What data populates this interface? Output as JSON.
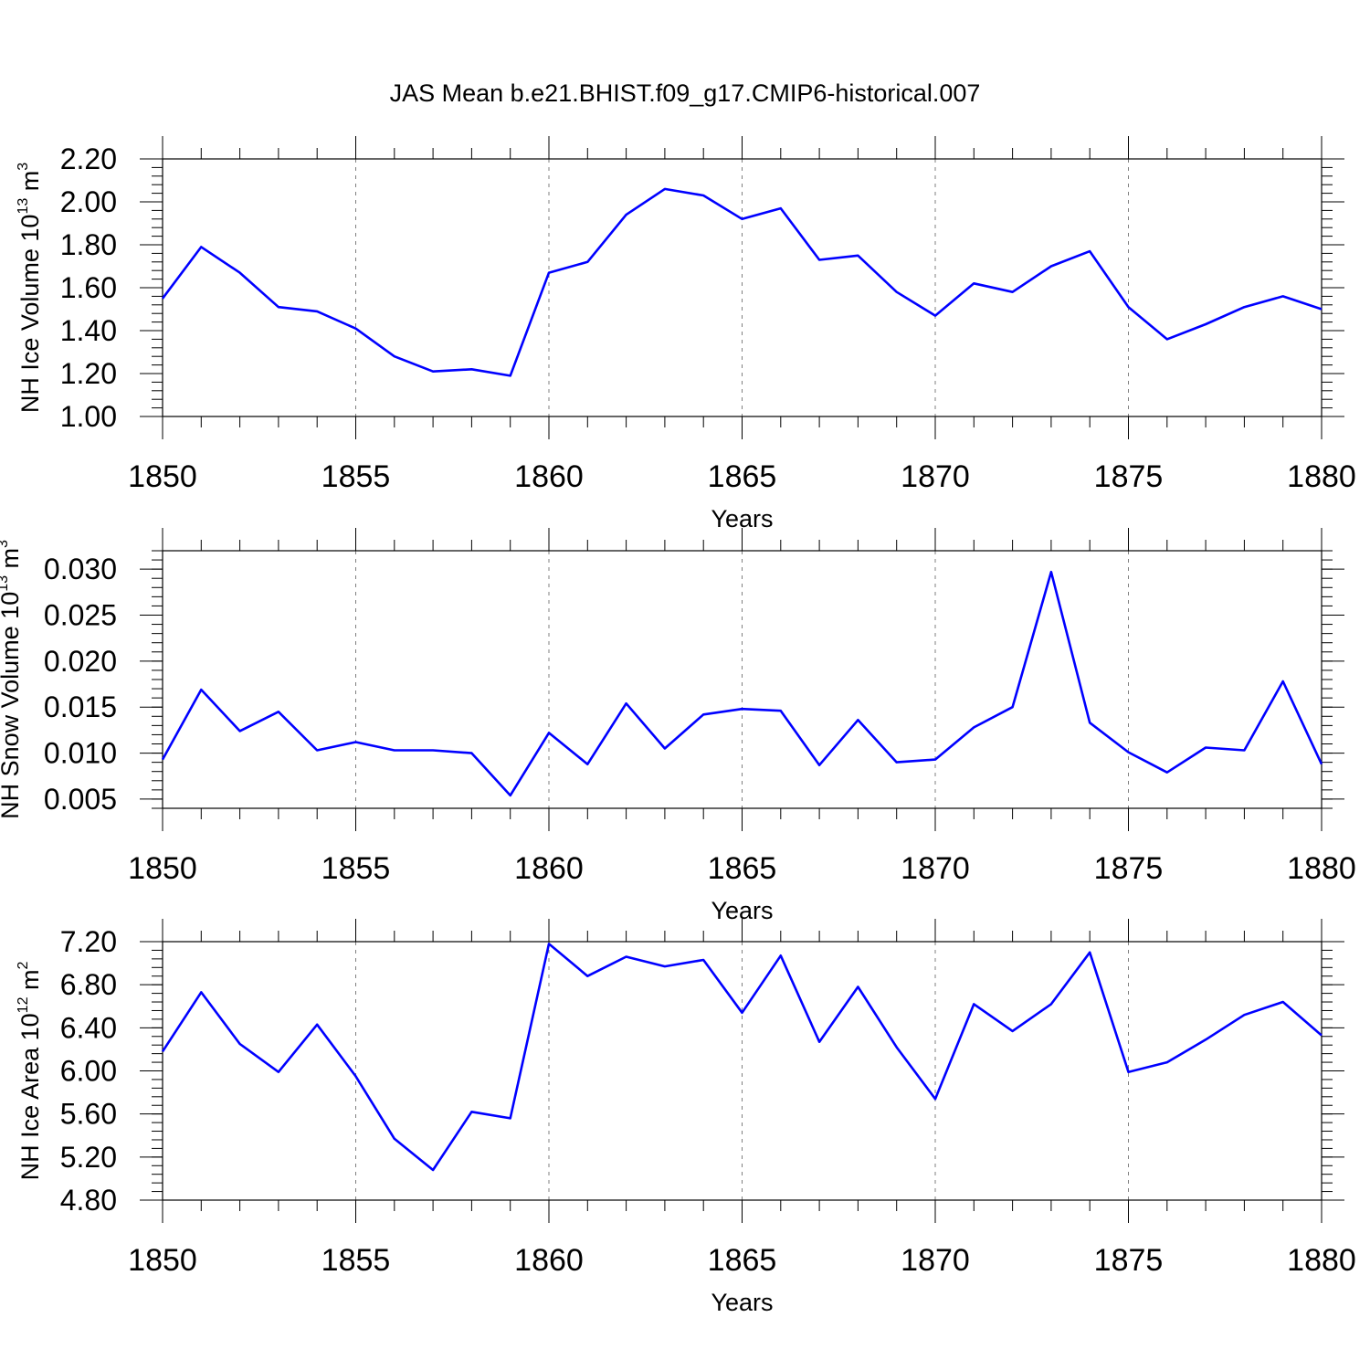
{
  "title": "JAS Mean b.e21.BHIST.f09_g17.CMIP6-historical.007",
  "colors": {
    "line": "#0000ff",
    "axis": "#000000",
    "grid": "#7f7f7f"
  },
  "chart_data": [
    {
      "type": "line",
      "title": "JAS Mean b.e21.BHIST.f09_g17.CMIP6-historical.007",
      "ylabel": "NH Ice Volume 10",
      "ylabel_exp": "13",
      "ylabel_unit": "m",
      "ylabel_unit_exp": "3",
      "xlabel": "Years",
      "xlim": [
        1850,
        1880
      ],
      "ylim": [
        1.0,
        2.2
      ],
      "xticks": [
        1850,
        1855,
        1860,
        1865,
        1870,
        1875,
        1880
      ],
      "xtick_labels": [
        "1850",
        "1855",
        "1860",
        "1865",
        "1870",
        "1875",
        "1880"
      ],
      "yticks": [
        1.0,
        1.2,
        1.4,
        1.6,
        1.8,
        2.0,
        2.2
      ],
      "ytick_labels": [
        "1.00",
        "1.20",
        "1.40",
        "1.60",
        "1.80",
        "2.00",
        "2.20"
      ],
      "x": [
        1850,
        1851,
        1852,
        1853,
        1854,
        1855,
        1856,
        1857,
        1858,
        1859,
        1860,
        1861,
        1862,
        1863,
        1864,
        1865,
        1866,
        1867,
        1868,
        1869,
        1870,
        1871,
        1872,
        1873,
        1874,
        1875,
        1876,
        1877,
        1878,
        1879,
        1880
      ],
      "y": [
        1.55,
        1.79,
        1.67,
        1.51,
        1.49,
        1.41,
        1.28,
        1.21,
        1.22,
        1.19,
        1.67,
        1.72,
        1.94,
        2.06,
        2.03,
        1.92,
        1.97,
        1.73,
        1.75,
        1.58,
        1.47,
        1.62,
        1.58,
        1.7,
        1.77,
        1.51,
        1.36,
        1.43,
        1.51,
        1.56,
        1.5
      ]
    },
    {
      "type": "line",
      "ylabel": "NH Snow Volume 10",
      "ylabel_exp": "13",
      "ylabel_unit": "m",
      "ylabel_unit_exp": "3",
      "xlabel": "Years",
      "xlim": [
        1850,
        1880
      ],
      "ylim": [
        0.004,
        0.032
      ],
      "xticks": [
        1850,
        1855,
        1860,
        1865,
        1870,
        1875,
        1880
      ],
      "xtick_labels": [
        "1850",
        "1855",
        "1860",
        "1865",
        "1870",
        "1875",
        "1880"
      ],
      "yticks": [
        0.005,
        0.01,
        0.015,
        0.02,
        0.025,
        0.03
      ],
      "ytick_labels": [
        "0.005",
        "0.010",
        "0.015",
        "0.020",
        "0.025",
        "0.030"
      ],
      "x": [
        1850,
        1851,
        1852,
        1853,
        1854,
        1855,
        1856,
        1857,
        1858,
        1859,
        1860,
        1861,
        1862,
        1863,
        1864,
        1865,
        1866,
        1867,
        1868,
        1869,
        1870,
        1871,
        1872,
        1873,
        1874,
        1875,
        1876,
        1877,
        1878,
        1879,
        1880
      ],
      "y": [
        0.0093,
        0.0169,
        0.0124,
        0.0145,
        0.0103,
        0.0112,
        0.0103,
        0.0103,
        0.01,
        0.0054,
        0.0122,
        0.0088,
        0.0154,
        0.0105,
        0.0142,
        0.0148,
        0.0146,
        0.0087,
        0.0136,
        0.009,
        0.0093,
        0.0128,
        0.015,
        0.0297,
        0.0133,
        0.0101,
        0.0079,
        0.0106,
        0.0103,
        0.0178,
        0.0088
      ]
    },
    {
      "type": "line",
      "ylabel": "NH Ice Area 10",
      "ylabel_exp": "12",
      "ylabel_unit": "m",
      "ylabel_unit_exp": "2",
      "xlabel": "Years",
      "xlim": [
        1850,
        1880
      ],
      "ylim": [
        4.8,
        7.2
      ],
      "xticks": [
        1850,
        1855,
        1860,
        1865,
        1870,
        1875,
        1880
      ],
      "xtick_labels": [
        "1850",
        "1855",
        "1860",
        "1865",
        "1870",
        "1875",
        "1880"
      ],
      "yticks": [
        4.8,
        5.2,
        5.6,
        6.0,
        6.4,
        6.8,
        7.2
      ],
      "ytick_labels": [
        "4.80",
        "5.20",
        "5.60",
        "6.00",
        "6.40",
        "6.80",
        "7.20"
      ],
      "x": [
        1850,
        1851,
        1852,
        1853,
        1854,
        1855,
        1856,
        1857,
        1858,
        1859,
        1860,
        1861,
        1862,
        1863,
        1864,
        1865,
        1866,
        1867,
        1868,
        1869,
        1870,
        1871,
        1872,
        1873,
        1874,
        1875,
        1876,
        1877,
        1878,
        1879,
        1880
      ],
      "y": [
        6.18,
        6.73,
        6.25,
        5.99,
        6.43,
        5.95,
        5.37,
        5.08,
        5.62,
        5.56,
        7.18,
        6.88,
        7.06,
        6.97,
        7.03,
        6.54,
        7.07,
        6.27,
        6.78,
        6.22,
        5.74,
        6.62,
        6.37,
        6.62,
        7.1,
        5.99,
        6.08,
        6.29,
        6.52,
        6.64,
        6.33
      ]
    }
  ]
}
